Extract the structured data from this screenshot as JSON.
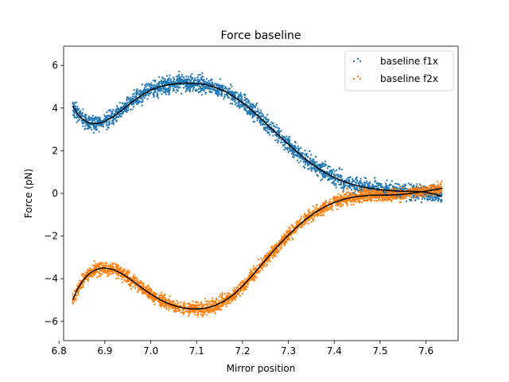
{
  "chart_data": {
    "type": "scatter",
    "title": "Force baseline",
    "xlabel": "Mirror position",
    "ylabel": "Force (pN)",
    "xlim": [
      6.81,
      7.67
    ],
    "ylim": [
      -6.9,
      6.9
    ],
    "xticks": [
      6.8,
      6.9,
      7.0,
      7.1,
      7.2,
      7.3,
      7.4,
      7.5,
      7.6
    ],
    "yticks": [
      -6,
      -4,
      -2,
      0,
      2,
      4,
      6
    ],
    "xtick_labels": [
      "6.8",
      "6.9",
      "7.0",
      "7.1",
      "7.2",
      "7.3",
      "7.4",
      "7.5",
      "7.6"
    ],
    "ytick_labels": [
      "−6",
      "−4",
      "−2",
      "0",
      "2",
      "4",
      "6"
    ],
    "grid": false,
    "legend_position": "top-right",
    "series": [
      {
        "name": "baseline f1x",
        "color": "#1f77b4",
        "marker": "point",
        "x": [
          6.83,
          6.84,
          6.85,
          6.86,
          6.87,
          6.88,
          6.89,
          6.9,
          6.92,
          6.94,
          6.96,
          6.98,
          7.0,
          7.02,
          7.04,
          7.06,
          7.08,
          7.1,
          7.12,
          7.14,
          7.16,
          7.18,
          7.2,
          7.22,
          7.24,
          7.26,
          7.28,
          7.3,
          7.32,
          7.34,
          7.36,
          7.38,
          7.4,
          7.42,
          7.44,
          7.46,
          7.48,
          7.5,
          7.52,
          7.54,
          7.56,
          7.58,
          7.6,
          7.62,
          7.635
        ],
        "y": [
          4.1,
          3.75,
          3.5,
          3.35,
          3.28,
          3.27,
          3.3,
          3.38,
          3.62,
          3.95,
          4.3,
          4.6,
          4.85,
          5.0,
          5.1,
          5.15,
          5.17,
          5.15,
          5.1,
          4.98,
          4.8,
          4.55,
          4.25,
          3.9,
          3.5,
          3.1,
          2.7,
          2.3,
          1.92,
          1.55,
          1.25,
          0.97,
          0.75,
          0.56,
          0.42,
          0.31,
          0.23,
          0.17,
          0.13,
          0.11,
          0.1,
          0.09,
          0.05,
          -0.05,
          -0.15
        ],
        "scatter_spread": 0.38
      },
      {
        "name": "baseline f2x",
        "color": "#ff7f0e",
        "marker": "point",
        "x": [
          6.83,
          6.84,
          6.85,
          6.86,
          6.87,
          6.88,
          6.89,
          6.9,
          6.92,
          6.94,
          6.96,
          6.98,
          7.0,
          7.02,
          7.04,
          7.06,
          7.08,
          7.1,
          7.12,
          7.14,
          7.16,
          7.18,
          7.2,
          7.22,
          7.24,
          7.26,
          7.28,
          7.3,
          7.32,
          7.34,
          7.36,
          7.38,
          7.4,
          7.42,
          7.44,
          7.46,
          7.48,
          7.5,
          7.52,
          7.54,
          7.56,
          7.58,
          7.6,
          7.62,
          7.635
        ],
        "y": [
          -4.98,
          -4.5,
          -4.15,
          -3.88,
          -3.7,
          -3.58,
          -3.52,
          -3.5,
          -3.58,
          -3.8,
          -4.1,
          -4.42,
          -4.72,
          -4.98,
          -5.18,
          -5.32,
          -5.4,
          -5.42,
          -5.38,
          -5.26,
          -5.05,
          -4.75,
          -4.35,
          -3.88,
          -3.38,
          -2.88,
          -2.4,
          -1.95,
          -1.55,
          -1.18,
          -0.87,
          -0.62,
          -0.43,
          -0.28,
          -0.18,
          -0.12,
          -0.09,
          -0.08,
          -0.08,
          -0.06,
          -0.02,
          0.04,
          0.11,
          0.18,
          0.24
        ],
        "scatter_spread": 0.3
      }
    ]
  }
}
